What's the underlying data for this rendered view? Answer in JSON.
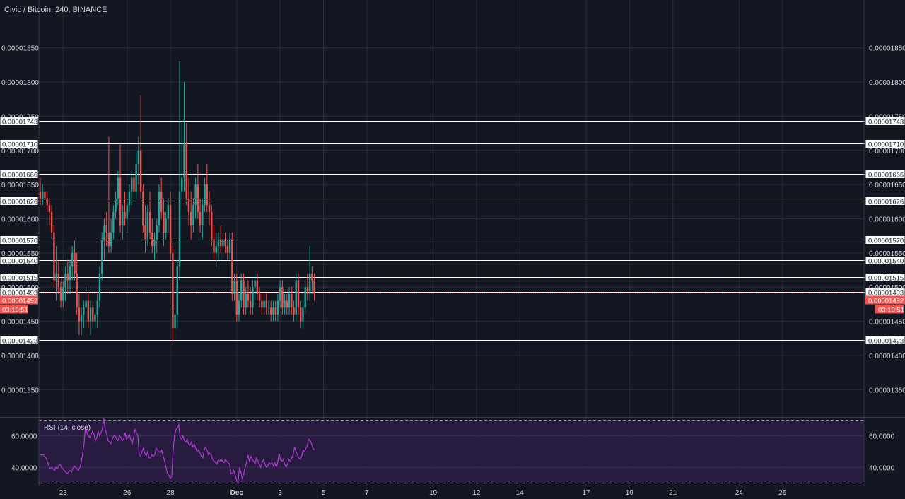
{
  "header": {
    "title": "Civic / Bitcoin, 240, BINANCE"
  },
  "colors": {
    "background": "#131722",
    "grid": "#2a2e39",
    "up": "#26a69a",
    "down": "#ef5350",
    "level_line": "#ffffff",
    "rsi_line": "#b23ad8",
    "rsi_band": "#2a1d42",
    "axis_text": "#d1d4dc",
    "last_price": "#ef5350"
  },
  "last_price": {
    "value": "0.00001492",
    "countdown": "03:19:51"
  },
  "chart_data": [
    {
      "type": "candlestick",
      "title": "Civic / Bitcoin, 240, BINANCE",
      "ylim": [
        1.31e-05,
        1.92e-05
      ],
      "y_ticks": [
        "0.00001350",
        "0.00001400",
        "0.00001450",
        "0.00001500",
        "0.00001550",
        "0.00001600",
        "0.00001650",
        "0.00001700",
        "0.00001750",
        "0.00001800",
        "0.00001850"
      ],
      "x_ticks": [
        "23",
        "26",
        "28",
        "Dec",
        "3",
        "5",
        "7",
        "10",
        "12",
        "14",
        "17",
        "19",
        "21",
        "24",
        "26"
      ],
      "x_tick_index": [
        10,
        38,
        57,
        86,
        105,
        124,
        143,
        172,
        191,
        210,
        239,
        258,
        277,
        306,
        325
      ],
      "levels": [
        "0.00001743",
        "0.00001710",
        "0.00001666",
        "0.00001626",
        "0.00001570",
        "0.00001540",
        "0.00001515",
        "0.00001493",
        "0.00001423"
      ],
      "last_price": 1.492e-05,
      "candles": [
        [
          1.64e-05,
          1.66e-05,
          1.62e-05,
          1.63e-05
        ],
        [
          1.63e-05,
          1.65e-05,
          1.62e-05,
          1.64e-05
        ],
        [
          1.64e-05,
          1.65e-05,
          1.62e-05,
          1.63e-05
        ],
        [
          1.63e-05,
          1.64e-05,
          1.61e-05,
          1.62e-05
        ],
        [
          1.62e-05,
          1.63e-05,
          1.59e-05,
          1.61e-05
        ],
        [
          1.61e-05,
          1.62e-05,
          1.57e-05,
          1.58e-05
        ],
        [
          1.58e-05,
          1.59e-05,
          1.5e-05,
          1.51e-05
        ],
        [
          1.51e-05,
          1.56e-05,
          1.48e-05,
          1.52e-05
        ],
        [
          1.52e-05,
          1.54e-05,
          1.49e-05,
          1.5e-05
        ],
        [
          1.5e-05,
          1.51e-05,
          1.47e-05,
          1.48e-05
        ],
        [
          1.48e-05,
          1.51e-05,
          1.47e-05,
          1.5e-05
        ],
        [
          1.5e-05,
          1.53e-05,
          1.48e-05,
          1.52e-05
        ],
        [
          1.52e-05,
          1.54e-05,
          1.49e-05,
          1.51e-05
        ],
        [
          1.51e-05,
          1.54e-05,
          1.49e-05,
          1.53e-05
        ],
        [
          1.53e-05,
          1.56e-05,
          1.51e-05,
          1.55e-05
        ],
        [
          1.55e-05,
          1.57e-05,
          1.51e-05,
          1.52e-05
        ],
        [
          1.52e-05,
          1.55e-05,
          1.46e-05,
          1.47e-05
        ],
        [
          1.47e-05,
          1.49e-05,
          1.43e-05,
          1.45e-05
        ],
        [
          1.45e-05,
          1.47e-05,
          1.43e-05,
          1.46e-05
        ],
        [
          1.46e-05,
          1.48e-05,
          1.44e-05,
          1.47e-05
        ],
        [
          1.47e-05,
          1.5e-05,
          1.45e-05,
          1.48e-05
        ],
        [
          1.48e-05,
          1.49e-05,
          1.44e-05,
          1.45e-05
        ],
        [
          1.45e-05,
          1.48e-05,
          1.43e-05,
          1.47e-05
        ],
        [
          1.47e-05,
          1.48e-05,
          1.44e-05,
          1.45e-05
        ],
        [
          1.45e-05,
          1.47e-05,
          1.44e-05,
          1.46e-05
        ],
        [
          1.46e-05,
          1.49e-05,
          1.44e-05,
          1.48e-05
        ],
        [
          1.48e-05,
          1.53e-05,
          1.47e-05,
          1.52e-05
        ],
        [
          1.52e-05,
          1.58e-05,
          1.51e-05,
          1.57e-05
        ],
        [
          1.57e-05,
          1.6e-05,
          1.54e-05,
          1.59e-05
        ],
        [
          1.59e-05,
          1.61e-05,
          1.56e-05,
          1.58e-05
        ],
        [
          1.58e-05,
          1.72e-05,
          1.55e-05,
          1.56e-05
        ],
        [
          1.56e-05,
          1.6e-05,
          1.55e-05,
          1.58e-05
        ],
        [
          1.58e-05,
          1.62e-05,
          1.57e-05,
          1.61e-05
        ],
        [
          1.61e-05,
          1.64e-05,
          1.6e-05,
          1.63e-05
        ],
        [
          1.63e-05,
          1.67e-05,
          1.62e-05,
          1.66e-05
        ],
        [
          1.66e-05,
          1.71e-05,
          1.58e-05,
          1.59e-05
        ],
        [
          1.59e-05,
          1.62e-05,
          1.57e-05,
          1.61e-05
        ],
        [
          1.61e-05,
          1.64e-05,
          1.59e-05,
          1.6e-05
        ],
        [
          1.6e-05,
          1.63e-05,
          1.58e-05,
          1.62e-05
        ],
        [
          1.62e-05,
          1.65e-05,
          1.61e-05,
          1.64e-05
        ],
        [
          1.64e-05,
          1.67e-05,
          1.62e-05,
          1.66e-05
        ],
        [
          1.66e-05,
          1.68e-05,
          1.63e-05,
          1.64e-05
        ],
        [
          1.64e-05,
          1.7e-05,
          1.63e-05,
          1.68e-05
        ],
        [
          1.68e-05,
          1.72e-05,
          1.65e-05,
          1.7e-05
        ],
        [
          1.7e-05,
          1.78e-05,
          1.63e-05,
          1.64e-05
        ],
        [
          1.64e-05,
          1.65e-05,
          1.58e-05,
          1.59e-05
        ],
        [
          1.59e-05,
          1.62e-05,
          1.55e-05,
          1.57e-05
        ],
        [
          1.57e-05,
          1.62e-05,
          1.56e-05,
          1.61e-05
        ],
        [
          1.61e-05,
          1.64e-05,
          1.57e-05,
          1.58e-05
        ],
        [
          1.58e-05,
          1.6e-05,
          1.55e-05,
          1.56e-05
        ],
        [
          1.56e-05,
          1.58e-05,
          1.54e-05,
          1.57e-05
        ],
        [
          1.57e-05,
          1.6e-05,
          1.55e-05,
          1.59e-05
        ],
        [
          1.59e-05,
          1.65e-05,
          1.58e-05,
          1.64e-05
        ],
        [
          1.64e-05,
          1.66e-05,
          1.6e-05,
          1.61e-05
        ],
        [
          1.61e-05,
          1.63e-05,
          1.56e-05,
          1.58e-05
        ],
        [
          1.58e-05,
          1.61e-05,
          1.57e-05,
          1.6e-05
        ],
        [
          1.6e-05,
          1.63e-05,
          1.58e-05,
          1.62e-05
        ],
        [
          1.62e-05,
          1.64e-05,
          1.54e-05,
          1.55e-05
        ],
        [
          1.55e-05,
          1.56e-05,
          1.42e-05,
          1.44e-05
        ],
        [
          1.44e-05,
          1.47e-05,
          1.42e-05,
          1.46e-05
        ],
        [
          1.46e-05,
          1.54e-05,
          1.44e-05,
          1.53e-05
        ],
        [
          1.53e-05,
          1.83e-05,
          1.51e-05,
          1.64e-05
        ],
        [
          1.64e-05,
          1.74e-05,
          1.63e-05,
          1.66e-05
        ],
        [
          1.66e-05,
          1.8e-05,
          1.64e-05,
          1.71e-05
        ],
        [
          1.71e-05,
          1.74e-05,
          1.62e-05,
          1.63e-05
        ],
        [
          1.63e-05,
          1.66e-05,
          1.59e-05,
          1.61e-05
        ],
        [
          1.61e-05,
          1.64e-05,
          1.57e-05,
          1.59e-05
        ],
        [
          1.59e-05,
          1.63e-05,
          1.58e-05,
          1.62e-05
        ],
        [
          1.62e-05,
          1.66e-05,
          1.6e-05,
          1.65e-05
        ],
        [
          1.65e-05,
          1.68e-05,
          1.6e-05,
          1.61e-05
        ],
        [
          1.61e-05,
          1.63e-05,
          1.58e-05,
          1.59e-05
        ],
        [
          1.59e-05,
          1.63e-05,
          1.57e-05,
          1.62e-05
        ],
        [
          1.62e-05,
          1.66e-05,
          1.61e-05,
          1.65e-05
        ],
        [
          1.65e-05,
          1.68e-05,
          1.61e-05,
          1.62e-05
        ],
        [
          1.62e-05,
          1.64e-05,
          1.59e-05,
          1.61e-05
        ],
        [
          1.61e-05,
          1.62e-05,
          1.56e-05,
          1.57e-05
        ],
        [
          1.57e-05,
          1.59e-05,
          1.54e-05,
          1.55e-05
        ],
        [
          1.55e-05,
          1.58e-05,
          1.53e-05,
          1.56e-05
        ],
        [
          1.56e-05,
          1.58e-05,
          1.54e-05,
          1.57e-05
        ],
        [
          1.57e-05,
          1.59e-05,
          1.55e-05,
          1.56e-05
        ],
        [
          1.56e-05,
          1.58e-05,
          1.54e-05,
          1.57e-05
        ],
        [
          1.57e-05,
          1.58e-05,
          1.55e-05,
          1.56e-05
        ],
        [
          1.56e-05,
          1.57e-05,
          1.54e-05,
          1.55e-05
        ],
        [
          1.55e-05,
          1.58e-05,
          1.54e-05,
          1.57e-05
        ],
        [
          1.57e-05,
          1.58e-05,
          1.48e-05,
          1.49e-05
        ],
        [
          1.49e-05,
          1.52e-05,
          1.48e-05,
          1.51e-05
        ],
        [
          1.51e-05,
          1.52e-05,
          1.45e-05,
          1.46e-05
        ],
        [
          1.46e-05,
          1.49e-05,
          1.45e-05,
          1.48e-05
        ],
        [
          1.48e-05,
          1.52e-05,
          1.47e-05,
          1.51e-05
        ],
        [
          1.51e-05,
          1.52e-05,
          1.46e-05,
          1.47e-05
        ],
        [
          1.47e-05,
          1.5e-05,
          1.46e-05,
          1.49e-05
        ],
        [
          1.49e-05,
          1.51e-05,
          1.47e-05,
          1.48e-05
        ],
        [
          1.48e-05,
          1.5e-05,
          1.46e-05,
          1.47e-05
        ],
        [
          1.47e-05,
          1.51e-05,
          1.46e-05,
          1.5e-05
        ],
        [
          1.5e-05,
          1.52e-05,
          1.48e-05,
          1.51e-05
        ],
        [
          1.51e-05,
          1.52e-05,
          1.48e-05,
          1.49e-05
        ],
        [
          1.49e-05,
          1.5e-05,
          1.47e-05,
          1.48e-05
        ],
        [
          1.48e-05,
          1.49e-05,
          1.46e-05,
          1.47e-05
        ],
        [
          1.47e-05,
          1.49e-05,
          1.46e-05,
          1.48e-05
        ],
        [
          1.48e-05,
          1.49e-05,
          1.46e-05,
          1.47e-05
        ],
        [
          1.47e-05,
          1.48e-05,
          1.46e-05,
          1.47e-05
        ],
        [
          1.47e-05,
          1.48e-05,
          1.45e-05,
          1.46e-05
        ],
        [
          1.46e-05,
          1.48e-05,
          1.45e-05,
          1.47e-05
        ],
        [
          1.47e-05,
          1.48e-05,
          1.45e-05,
          1.46e-05
        ],
        [
          1.46e-05,
          1.49e-05,
          1.45e-05,
          1.48e-05
        ],
        [
          1.48e-05,
          1.51e-05,
          1.47e-05,
          1.5e-05
        ],
        [
          1.5e-05,
          1.51e-05,
          1.46e-05,
          1.47e-05
        ],
        [
          1.47e-05,
          1.49e-05,
          1.46e-05,
          1.48e-05
        ],
        [
          1.48e-05,
          1.49e-05,
          1.46e-05,
          1.47e-05
        ],
        [
          1.47e-05,
          1.5e-05,
          1.46e-05,
          1.49e-05
        ],
        [
          1.49e-05,
          1.5e-05,
          1.46e-05,
          1.47e-05
        ],
        [
          1.47e-05,
          1.48e-05,
          1.45e-05,
          1.46e-05
        ],
        [
          1.46e-05,
          1.52e-05,
          1.45e-05,
          1.51e-05
        ],
        [
          1.51e-05,
          1.52e-05,
          1.46e-05,
          1.47e-05
        ],
        [
          1.47e-05,
          1.48e-05,
          1.44e-05,
          1.45e-05
        ],
        [
          1.45e-05,
          1.48e-05,
          1.44e-05,
          1.47e-05
        ],
        [
          1.47e-05,
          1.51e-05,
          1.46e-05,
          1.5e-05
        ],
        [
          1.5e-05,
          1.52e-05,
          1.48e-05,
          1.49e-05
        ],
        [
          1.49e-05,
          1.56e-05,
          1.48e-05,
          1.52e-05
        ],
        [
          1.52e-05,
          1.53e-05,
          1.49e-05,
          1.51e-05
        ],
        [
          1.51e-05,
          1.52e-05,
          1.48e-05,
          1.49e-05
        ]
      ]
    },
    {
      "type": "line",
      "title": "RSI (14, close)",
      "ylim": [
        28,
        72
      ],
      "y_ticks": [
        "40.0000",
        "60.0000"
      ],
      "upper_band": 70,
      "lower_band": 30,
      "values": [
        48,
        48,
        48,
        47,
        46,
        44,
        41,
        39,
        40,
        39,
        38,
        40,
        39,
        41,
        42,
        40,
        39,
        38,
        37,
        36,
        37,
        38,
        37,
        39,
        41,
        40,
        39,
        38,
        40,
        43,
        49,
        55,
        66,
        62,
        60,
        59,
        61,
        63,
        61,
        57,
        59,
        63,
        60,
        62,
        65,
        71,
        64,
        61,
        57,
        56,
        55,
        58,
        60,
        60,
        58,
        57,
        60,
        59,
        57,
        58,
        62,
        58,
        59,
        61,
        58,
        55,
        59,
        64,
        62,
        60,
        48,
        47,
        50,
        52,
        49,
        47,
        50,
        46,
        46,
        48,
        47,
        48,
        52,
        51,
        50,
        49,
        51,
        47,
        44,
        40,
        36,
        35,
        33,
        34,
        50,
        60,
        64,
        65,
        67,
        59,
        58,
        60,
        57,
        56,
        58,
        55,
        54,
        56,
        53,
        55,
        52,
        50,
        51,
        49,
        47,
        46,
        51,
        53,
        51,
        48,
        49,
        48,
        45,
        44,
        43,
        42,
        45,
        44,
        45,
        44,
        43,
        45,
        44,
        43,
        42,
        36,
        36,
        38,
        35,
        32,
        30,
        40,
        37,
        33,
        36,
        40,
        43,
        48,
        44,
        47,
        45,
        44,
        42,
        46,
        44,
        42,
        40,
        43,
        45,
        42,
        40,
        41,
        43,
        42,
        43,
        41,
        43,
        40,
        43,
        49,
        45,
        44,
        45,
        42,
        40,
        42,
        45,
        44,
        46,
        48,
        53,
        50,
        48,
        46,
        45,
        47,
        51,
        50,
        52,
        54,
        58,
        57,
        55,
        52,
        51
      ]
    }
  ]
}
